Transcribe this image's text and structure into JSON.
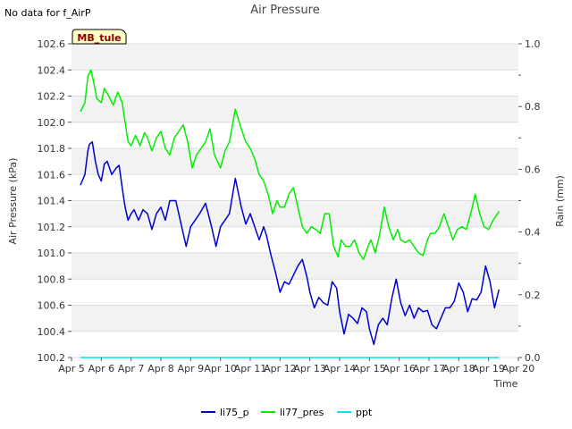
{
  "chart_data": {
    "type": "line",
    "title": "Air Pressure",
    "note": "No data for f_AirP",
    "badge": "MB_tule",
    "xlabel": "Time",
    "ylabel": "Air Pressure (kPa)",
    "y2label": "Rain (mm)",
    "x_ticks": [
      "Apr 5",
      "Apr 6",
      "Apr 7",
      "Apr 8",
      "Apr 9",
      "Apr 10",
      "Apr 11",
      "Apr 12",
      "Apr 13",
      "Apr 14",
      "Apr 15",
      "Apr 16",
      "Apr 17",
      "Apr 18",
      "Apr 19",
      "Apr 20"
    ],
    "xlim": [
      5,
      20
    ],
    "ylim": [
      100.2,
      102.6
    ],
    "y_ticks": [
      "100.2",
      "100.4",
      "100.6",
      "100.8",
      "101.0",
      "101.2",
      "101.4",
      "101.6",
      "101.8",
      "102.0",
      "102.2",
      "102.4",
      "102.6"
    ],
    "y2lim": [
      0.0,
      1.0
    ],
    "y2_ticks": [
      "0.0",
      "0.2",
      "0.4",
      "0.6",
      "0.8",
      "1.0"
    ],
    "grid": true,
    "legend_position": "bottom",
    "series": [
      {
        "name": "li75_p",
        "color": "#0000cc",
        "axis": "left",
        "x": [
          5.3,
          5.45,
          5.55,
          5.6,
          5.7,
          5.8,
          5.9,
          6.0,
          6.1,
          6.2,
          6.35,
          6.5,
          6.6,
          6.7,
          6.8,
          6.9,
          7.0,
          7.1,
          7.25,
          7.4,
          7.55,
          7.7,
          7.85,
          8.0,
          8.15,
          8.3,
          8.5,
          8.7,
          8.85,
          9.0,
          9.15,
          9.3,
          9.5,
          9.7,
          9.85,
          10.0,
          10.15,
          10.3,
          10.5,
          10.7,
          10.85,
          11.0,
          11.15,
          11.3,
          11.45,
          11.55,
          11.7,
          11.85,
          12.0,
          12.15,
          12.3,
          12.45,
          12.6,
          12.75,
          12.9,
          13.0,
          13.15,
          13.3,
          13.45,
          13.6,
          13.75,
          13.9,
          14.0,
          14.15,
          14.3,
          14.45,
          14.6,
          14.75,
          14.9,
          15.0,
          15.15,
          15.3,
          15.45,
          15.6,
          15.75,
          15.9,
          16.05,
          16.2,
          16.35,
          16.5,
          16.65,
          16.8,
          16.95,
          17.1,
          17.25,
          17.4,
          17.55,
          17.7,
          17.85,
          18.0,
          18.15,
          18.3,
          18.45,
          18.6,
          18.75,
          18.9,
          19.05,
          19.2,
          19.35
        ],
        "values": [
          101.52,
          101.6,
          101.78,
          101.83,
          101.85,
          101.7,
          101.6,
          101.55,
          101.68,
          101.7,
          101.6,
          101.65,
          101.67,
          101.5,
          101.35,
          101.25,
          101.3,
          101.33,
          101.25,
          101.33,
          101.3,
          101.18,
          101.3,
          101.35,
          101.25,
          101.4,
          101.4,
          101.2,
          101.05,
          101.2,
          101.25,
          101.3,
          101.38,
          101.2,
          101.05,
          101.2,
          101.25,
          101.3,
          101.57,
          101.35,
          101.22,
          101.3,
          101.2,
          101.1,
          101.2,
          101.13,
          100.98,
          100.85,
          100.7,
          100.78,
          100.76,
          100.83,
          100.9,
          100.95,
          100.82,
          100.7,
          100.58,
          100.66,
          100.62,
          100.6,
          100.78,
          100.73,
          100.55,
          100.38,
          100.53,
          100.5,
          100.46,
          100.58,
          100.55,
          100.42,
          100.3,
          100.45,
          100.5,
          100.45,
          100.65,
          100.8,
          100.62,
          100.52,
          100.6,
          100.5,
          100.58,
          100.55,
          100.56,
          100.45,
          100.42,
          100.5,
          100.58,
          100.58,
          100.63,
          100.77,
          100.7,
          100.55,
          100.65,
          100.64,
          100.7,
          100.9,
          100.78,
          100.58,
          100.72
        ]
      },
      {
        "name": "li77_pres",
        "color": "#00ee00",
        "axis": "left",
        "x": [
          5.3,
          5.45,
          5.55,
          5.65,
          5.75,
          5.85,
          6.0,
          6.1,
          6.25,
          6.4,
          6.55,
          6.7,
          6.8,
          6.9,
          7.0,
          7.15,
          7.3,
          7.45,
          7.55,
          7.7,
          7.85,
          8.0,
          8.15,
          8.3,
          8.45,
          8.6,
          8.75,
          8.9,
          9.05,
          9.2,
          9.35,
          9.5,
          9.65,
          9.8,
          10.0,
          10.15,
          10.3,
          10.5,
          10.7,
          10.85,
          11.0,
          11.15,
          11.3,
          11.45,
          11.6,
          11.75,
          11.9,
          12.0,
          12.15,
          12.3,
          12.45,
          12.6,
          12.75,
          12.9,
          13.05,
          13.2,
          13.35,
          13.5,
          13.65,
          13.8,
          13.95,
          14.05,
          14.2,
          14.35,
          14.5,
          14.65,
          14.8,
          14.95,
          15.05,
          15.2,
          15.35,
          15.5,
          15.65,
          15.8,
          15.95,
          16.05,
          16.2,
          16.35,
          16.5,
          16.65,
          16.8,
          16.95,
          17.05,
          17.2,
          17.35,
          17.5,
          17.65,
          17.8,
          17.95,
          18.1,
          18.25,
          18.4,
          18.55,
          18.7,
          18.85,
          19.0,
          19.15,
          19.3,
          19.35
        ],
        "values": [
          102.08,
          102.15,
          102.35,
          102.4,
          102.3,
          102.18,
          102.15,
          102.26,
          102.2,
          102.13,
          102.23,
          102.15,
          102.0,
          101.85,
          101.82,
          101.9,
          101.82,
          101.92,
          101.88,
          101.78,
          101.88,
          101.93,
          101.8,
          101.75,
          101.88,
          101.93,
          101.98,
          101.85,
          101.65,
          101.75,
          101.8,
          101.85,
          101.95,
          101.75,
          101.65,
          101.78,
          101.85,
          102.1,
          101.95,
          101.85,
          101.8,
          101.72,
          101.6,
          101.55,
          101.45,
          101.3,
          101.4,
          101.35,
          101.35,
          101.45,
          101.5,
          101.35,
          101.2,
          101.15,
          101.2,
          101.18,
          101.15,
          101.3,
          101.3,
          101.05,
          100.97,
          101.1,
          101.05,
          101.05,
          101.1,
          101.0,
          100.95,
          101.05,
          101.1,
          101.0,
          101.15,
          101.35,
          101.2,
          101.1,
          101.18,
          101.1,
          101.08,
          101.1,
          101.05,
          101.0,
          100.98,
          101.1,
          101.15,
          101.15,
          101.2,
          101.3,
          101.2,
          101.1,
          101.18,
          101.2,
          101.18,
          101.3,
          101.45,
          101.3,
          101.2,
          101.18,
          101.25,
          101.3,
          101.32
        ]
      },
      {
        "name": "ppt",
        "color": "#00e5ee",
        "axis": "right",
        "x": [
          5.3,
          19.35
        ],
        "values": [
          0.0,
          0.0
        ]
      }
    ]
  }
}
